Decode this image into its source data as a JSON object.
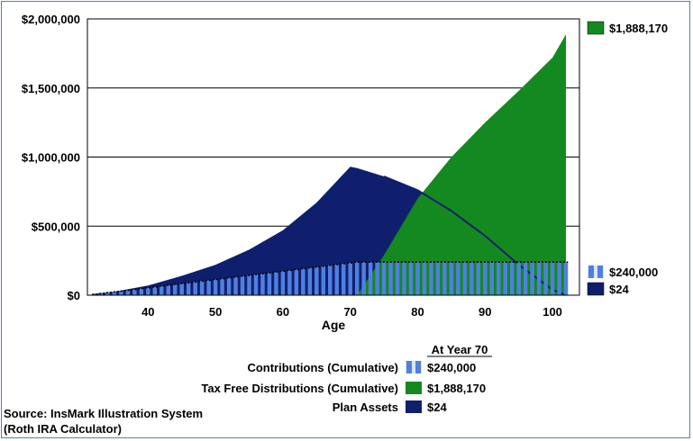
{
  "colors": {
    "contributions": "#4f7fdf",
    "contributions_gap": "#dbe4f8",
    "distributions": "#14891f",
    "plan_assets": "#0f1f6e",
    "gridline": "#000000",
    "border": "#4f81bd"
  },
  "chart_data": {
    "type": "area",
    "title": "",
    "xlabel": "Age",
    "ylabel": "",
    "xlim": [
      31,
      104
    ],
    "ylim": [
      0,
      2000000
    ],
    "x_ticks": [
      "40",
      "50",
      "60",
      "70",
      "80",
      "90",
      "100"
    ],
    "x_tick_values": [
      40,
      50,
      60,
      70,
      80,
      90,
      100
    ],
    "y_ticks": [
      "$0",
      "$500,000",
      "$1,000,000",
      "$1,500,000",
      "$2,000,000"
    ],
    "y_tick_values": [
      0,
      500000,
      1000000,
      1500000,
      2000000
    ],
    "grid": true,
    "series": [
      {
        "name": "Plan Assets",
        "style": "area",
        "x": [
          32,
          35,
          40,
          45,
          50,
          55,
          60,
          65,
          70,
          71,
          75,
          80,
          85,
          90,
          95,
          100,
          102
        ],
        "y": [
          10000,
          25000,
          70000,
          140000,
          220000,
          330000,
          470000,
          670000,
          930000,
          920000,
          860000,
          760000,
          610000,
          430000,
          220000,
          40000,
          24
        ]
      },
      {
        "name": "Tax Free Distributions (Cumulative)",
        "style": "area",
        "x": [
          70,
          71,
          75,
          80,
          85,
          90,
          95,
          100,
          102
        ],
        "y": [
          0,
          0,
          290000,
          700000,
          1000000,
          1250000,
          1480000,
          1720000,
          1888170
        ]
      },
      {
        "name": "Contributions (Cumulative)",
        "style": "bars",
        "x_start": 32,
        "x_end": 102,
        "contribution_per_year": 6000,
        "last_contribution_age": 71,
        "final_value": 240000
      }
    ],
    "right_labels": [
      {
        "series": "Tax Free Distributions (Cumulative)",
        "text": "$1,888,170"
      },
      {
        "series": "Contributions (Cumulative)",
        "text": "$240,000"
      },
      {
        "series": "Plan Assets",
        "text": "$24"
      }
    ]
  },
  "legend": {
    "header": "At Year 70",
    "items": [
      {
        "label": "Contributions (Cumulative)",
        "value": "$240,000"
      },
      {
        "label": "Tax Free Distributions (Cumulative)",
        "value": "$1,888,170"
      },
      {
        "label": "Plan Assets",
        "value": "$24"
      }
    ]
  },
  "source": {
    "line1": "Source: InsMark Illustration System",
    "line2": "(Roth IRA Calculator)"
  }
}
